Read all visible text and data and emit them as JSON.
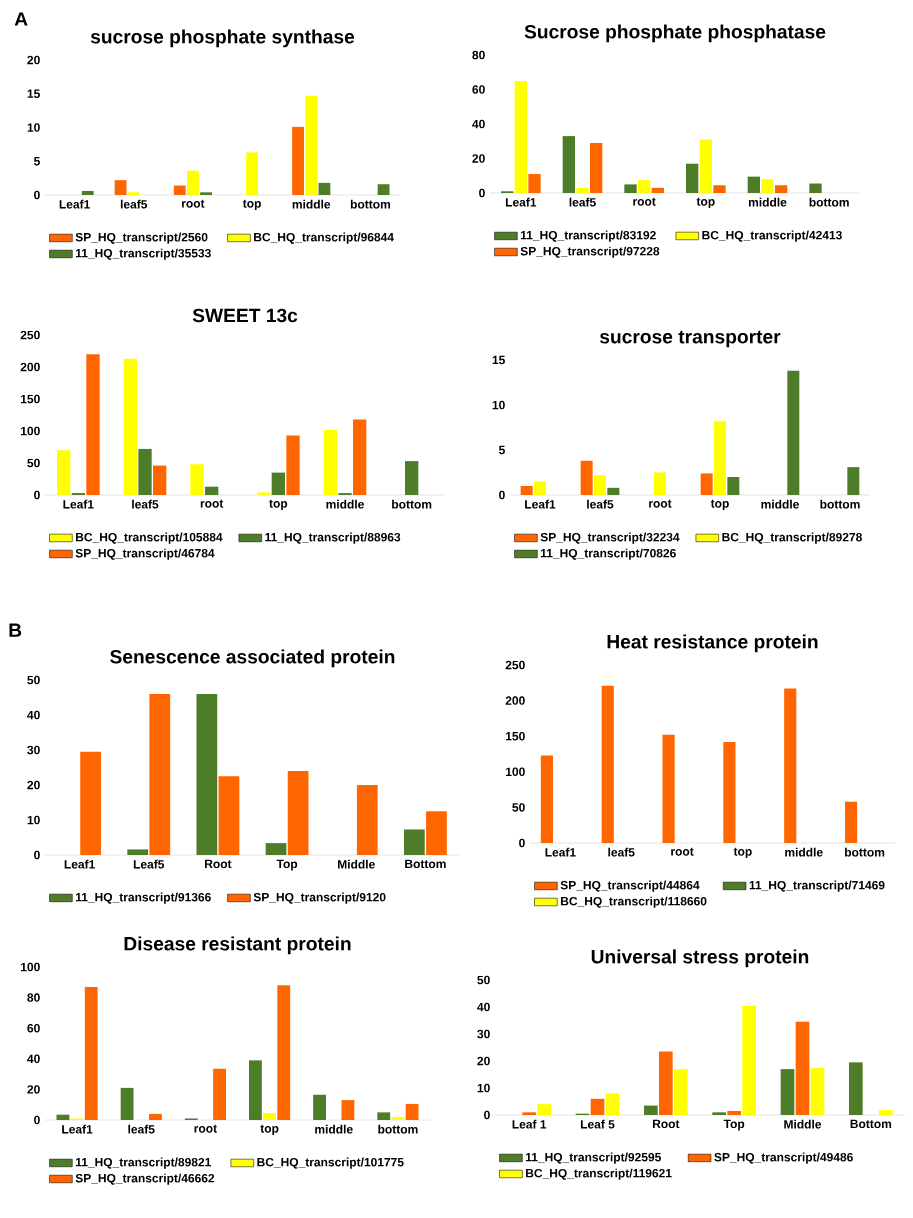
{
  "chart_data": [
    {
      "type": "bar",
      "title": "sucrose phosphate synthase",
      "annotations": [
        "A"
      ],
      "categories": [
        "Leaf1",
        "leaf5",
        "root",
        "top",
        "middle",
        "bottom"
      ],
      "ylim": [
        0,
        20
      ],
      "yticks": [
        0,
        5,
        10,
        15,
        20
      ],
      "legend": "bottom",
      "series": [
        {
          "name": "SP_HQ_transcript/2560",
          "color": "#ff6600",
          "values": [
            0,
            2.2,
            1.4,
            0,
            10.1,
            0
          ]
        },
        {
          "name": "BC_HQ_transcript/96844",
          "color": "#ffff00",
          "values": [
            0,
            0.4,
            3.6,
            6.3,
            14.7,
            0
          ]
        },
        {
          "name": "11_HQ_transcript/35533",
          "color": "#4e7d2a",
          "values": [
            0.6,
            0,
            0.4,
            0,
            1.8,
            1.6
          ]
        }
      ]
    },
    {
      "type": "bar",
      "title": "Sucrose phosphate phosphatase",
      "categories": [
        "Leaf1",
        "leaf5",
        "root",
        "top",
        "middle",
        "bottom"
      ],
      "ylim": [
        0,
        80
      ],
      "yticks": [
        0,
        20,
        40,
        60,
        80
      ],
      "legend": "bottom",
      "series": [
        {
          "name": "11_HQ_transcript/83192",
          "color": "#4e7d2a",
          "values": [
            1,
            33,
            5,
            17,
            9.5,
            5.5
          ]
        },
        {
          "name": "BC_HQ_transcript/42413",
          "color": "#ffff00",
          "values": [
            65,
            3,
            7.5,
            31,
            8,
            0
          ]
        },
        {
          "name": "SP_HQ_transcript/97228",
          "color": "#ff6600",
          "values": [
            11,
            29,
            3,
            4.5,
            4.5,
            0
          ]
        }
      ]
    },
    {
      "type": "bar",
      "title": "SWEET 13c",
      "categories": [
        "Leaf1",
        "leaf5",
        "root",
        "top",
        "middle",
        "bottom"
      ],
      "ylim": [
        0,
        250
      ],
      "yticks": [
        0,
        50,
        100,
        150,
        200,
        250
      ],
      "legend": "bottom",
      "series": [
        {
          "name": "BC_HQ_transcript/105884",
          "color": "#ffff00",
          "values": [
            70,
            213,
            48,
            4,
            102,
            0
          ]
        },
        {
          "name": "11_HQ_transcript/88963",
          "color": "#4e7d2a",
          "values": [
            3,
            72,
            13,
            35,
            3,
            53
          ]
        },
        {
          "name": "SP_HQ_transcript/46784",
          "color": "#ff6600",
          "values": [
            220,
            46,
            0,
            93,
            118,
            0
          ]
        }
      ]
    },
    {
      "type": "bar",
      "title": "sucrose transporter",
      "categories": [
        "Leaf1",
        "leaf5",
        "root",
        "top",
        "middle",
        "bottom"
      ],
      "ylim": [
        0,
        15
      ],
      "yticks": [
        0,
        5,
        10,
        15
      ],
      "legend": "bottom",
      "series": [
        {
          "name": "SP_HQ_transcript/32234",
          "color": "#ff6600",
          "values": [
            1,
            3.8,
            0,
            2.4,
            0,
            0
          ]
        },
        {
          "name": "BC_HQ_transcript/89278",
          "color": "#ffff00",
          "values": [
            1.5,
            2.2,
            2.5,
            8.2,
            0,
            0
          ]
        },
        {
          "name": "11_HQ_transcript/70826",
          "color": "#4e7d2a",
          "values": [
            0,
            0.8,
            0,
            2,
            13.8,
            3.1
          ]
        }
      ]
    },
    {
      "type": "bar",
      "title": "Senescence associated protein",
      "annotations": [
        "B"
      ],
      "categories": [
        "Leaf1",
        "Leaf5",
        "Root",
        "Top",
        "Middle",
        "Bottom"
      ],
      "ylim": [
        0,
        50
      ],
      "yticks": [
        0,
        10,
        20,
        30,
        40,
        50
      ],
      "legend": "bottom",
      "series": [
        {
          "name": "11_HQ_transcript/91366",
          "color": "#4e7d2a",
          "values": [
            0,
            1.6,
            46,
            3.4,
            0,
            7.3
          ]
        },
        {
          "name": "SP_HQ_transcript/9120",
          "color": "#ff6600",
          "values": [
            29.5,
            46,
            22.5,
            24,
            20,
            12.5
          ]
        }
      ]
    },
    {
      "type": "bar",
      "title": "Heat resistance protein",
      "categories": [
        "Leaf1",
        "leaf5",
        "root",
        "top",
        "middle",
        "bottom"
      ],
      "ylim": [
        0,
        250
      ],
      "yticks": [
        0,
        50,
        100,
        150,
        200,
        250
      ],
      "legend": "bottom",
      "series": [
        {
          "name": "SP_HQ_transcript/44864",
          "color": "#ff6600",
          "values": [
            123,
            221,
            152,
            142,
            217,
            58
          ]
        },
        {
          "name": "11_HQ_transcript/71469",
          "color": "#4e7d2a",
          "values": [
            0,
            0,
            0,
            0,
            0,
            0
          ]
        },
        {
          "name": "BC_HQ_transcript/118660",
          "color": "#ffff00",
          "values": [
            0,
            0,
            0,
            0,
            0,
            0
          ]
        }
      ]
    },
    {
      "type": "bar",
      "title": "Disease resistant protein",
      "categories": [
        "Leaf1",
        "leaf5",
        "root",
        "top",
        "middle",
        "bottom"
      ],
      "ylim": [
        0,
        100
      ],
      "yticks": [
        0,
        20,
        40,
        60,
        80,
        100
      ],
      "legend": "bottom",
      "series": [
        {
          "name": "11_HQ_transcript/89821",
          "color": "#4e7d2a",
          "values": [
            3.5,
            21,
            1,
            39,
            16.5,
            5
          ]
        },
        {
          "name": "BC_HQ_transcript/101775",
          "color": "#ffff00",
          "values": [
            1,
            0,
            0,
            4.5,
            0,
            2
          ]
        },
        {
          "name": "SP_HQ_transcript/46662",
          "color": "#ff6600",
          "values": [
            87,
            4,
            33.5,
            88,
            13,
            10.5
          ]
        }
      ]
    },
    {
      "type": "bar",
      "title": "Universal stress protein",
      "categories": [
        "Leaf 1",
        "Leaf 5",
        "Root",
        "Top",
        "Middle",
        "Bottom"
      ],
      "ylim": [
        0,
        50
      ],
      "yticks": [
        0,
        10,
        20,
        30,
        40,
        50
      ],
      "legend": "bottom",
      "series": [
        {
          "name": "11_HQ_transcript/92595",
          "color": "#4e7d2a",
          "values": [
            0,
            0.5,
            3.5,
            1,
            17,
            19.5
          ]
        },
        {
          "name": "SP_HQ_transcript/49486",
          "color": "#ff6600",
          "values": [
            1,
            6,
            23.5,
            1.5,
            34.5,
            0
          ]
        },
        {
          "name": "BC_HQ_transcript/119621",
          "color": "#ffff00",
          "values": [
            4,
            8,
            17,
            40.5,
            17.5,
            1.8
          ]
        }
      ]
    }
  ]
}
